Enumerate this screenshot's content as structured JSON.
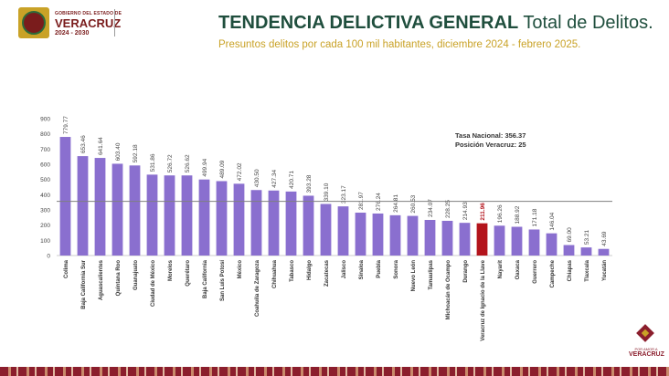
{
  "header": {
    "gov_small": "GOBIERNO DEL ESTADO DE",
    "gov_name": "VERACRUZ",
    "gov_years": "2024 - 2030",
    "title_bold": "TENDENCIA DELICTIVA GENERAL",
    "title_rest": " Total de Delitos.",
    "subtitle": "Presuntos delitos por cada 100 mil habitantes, diciembre 2024 - febrero 2025."
  },
  "brand": {
    "small": "POR AMOR A",
    "name": "VERACRUZ"
  },
  "colors": {
    "bar": "#8a6fcf",
    "highlight": "#b3141c",
    "title": "#1f4e3d",
    "subtitle": "#c9a227",
    "refline": "#7f7f7f"
  },
  "chart_data": {
    "type": "bar",
    "title": "",
    "xlabel": "",
    "ylabel": "",
    "ylim": [
      0,
      900
    ],
    "yticks": [
      0,
      100,
      200,
      300,
      400,
      500,
      600,
      700,
      800,
      900
    ],
    "grid": false,
    "reference_line": {
      "value": 356.37
    },
    "annotation": [
      "Tasa Nacional: 356.37",
      "Posición Veracruz: 25"
    ],
    "highlight_index": 24,
    "categories": [
      "Colima",
      "Baja California Sur",
      "Aguascalientes",
      "Quintana Roo",
      "Guanajuato",
      "Ciudad de México",
      "Morelos",
      "Querétaro",
      "Baja California",
      "San Luis Potosí",
      "México",
      "Coahuila de Zaragoza",
      "Chihuahua",
      "Tabasco",
      "Hidalgo",
      "Zacatecas",
      "Jalisco",
      "Sinaloa",
      "Puebla",
      "Sonora",
      "Nuevo León",
      "Tamaulipas",
      "Michoacán de Ocampo",
      "Durango",
      "Veracruz de Ignacio de la Llave",
      "Nayarit",
      "Oaxaca",
      "Guerrero",
      "Campeche",
      "Chiapas",
      "Tlaxcala",
      "Yucatán"
    ],
    "values": [
      779.77,
      653.46,
      641.64,
      603.4,
      592.18,
      531.86,
      526.72,
      526.62,
      499.94,
      489.09,
      472.02,
      430.5,
      427.34,
      420.71,
      393.28,
      339.1,
      323.17,
      281.97,
      276.24,
      264.81,
      260.53,
      234.07,
      228.25,
      214.93,
      211.96,
      196.26,
      188.92,
      171.18,
      146.04,
      69.0,
      53.21,
      43.69
    ],
    "labels": [
      "779.77",
      "653.46",
      "641.64",
      "603.40",
      "592.18",
      "531.86",
      "526.72",
      "526.62",
      "499.94",
      "489.09",
      "472.02",
      "430.50",
      "427.34",
      "420.71",
      "393.28",
      "339.10",
      "323.17",
      "281.97",
      "276.24",
      "264.81",
      "260.53",
      "234.07",
      "228.25",
      "214.93",
      "211.96",
      "196.26",
      "188.92",
      "171.18",
      "146.04",
      "69.00",
      "53.21",
      "43.69"
    ]
  }
}
